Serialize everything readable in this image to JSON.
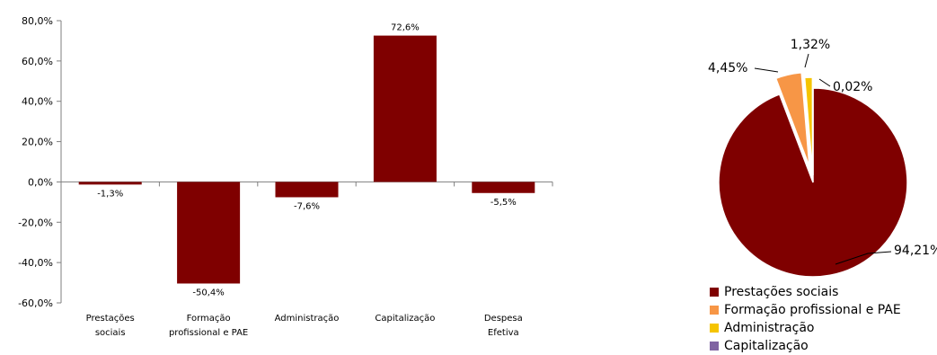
{
  "chart_data": [
    {
      "type": "bar",
      "categories": [
        [
          "Prestações",
          "sociais"
        ],
        [
          "Formação",
          "profissional e PAE"
        ],
        [
          "Administração"
        ],
        [
          "Capitalização"
        ],
        [
          "Despesa",
          "Efetiva"
        ]
      ],
      "values": [
        -1.3,
        -50.4,
        -7.6,
        72.6,
        -5.5
      ],
      "value_labels": [
        "-1,3%",
        "-50,4%",
        "-7,6%",
        "72,6%",
        "-5,5%"
      ],
      "ylim": [
        -60,
        80
      ],
      "ytick_labels": [
        "-60,0%",
        "-40,0%",
        "-20,0%",
        "0,0%",
        "20,0%",
        "40,0%",
        "60,0%",
        "80,0%"
      ],
      "grid": false,
      "color": "#7f0000"
    },
    {
      "type": "pie",
      "labels": [
        "Prestações sociais",
        "Formação profissional e PAE",
        "Administração",
        "Capitalização"
      ],
      "values": [
        94.21,
        4.45,
        1.32,
        0.02
      ],
      "value_labels": [
        "94,21%",
        "4,45%",
        "1,32%",
        "0,02%"
      ],
      "colors": [
        "#7f0000",
        "#f79646",
        "#f5c400",
        "#8064a2"
      ],
      "exploded": true,
      "legend": "bottom"
    }
  ]
}
